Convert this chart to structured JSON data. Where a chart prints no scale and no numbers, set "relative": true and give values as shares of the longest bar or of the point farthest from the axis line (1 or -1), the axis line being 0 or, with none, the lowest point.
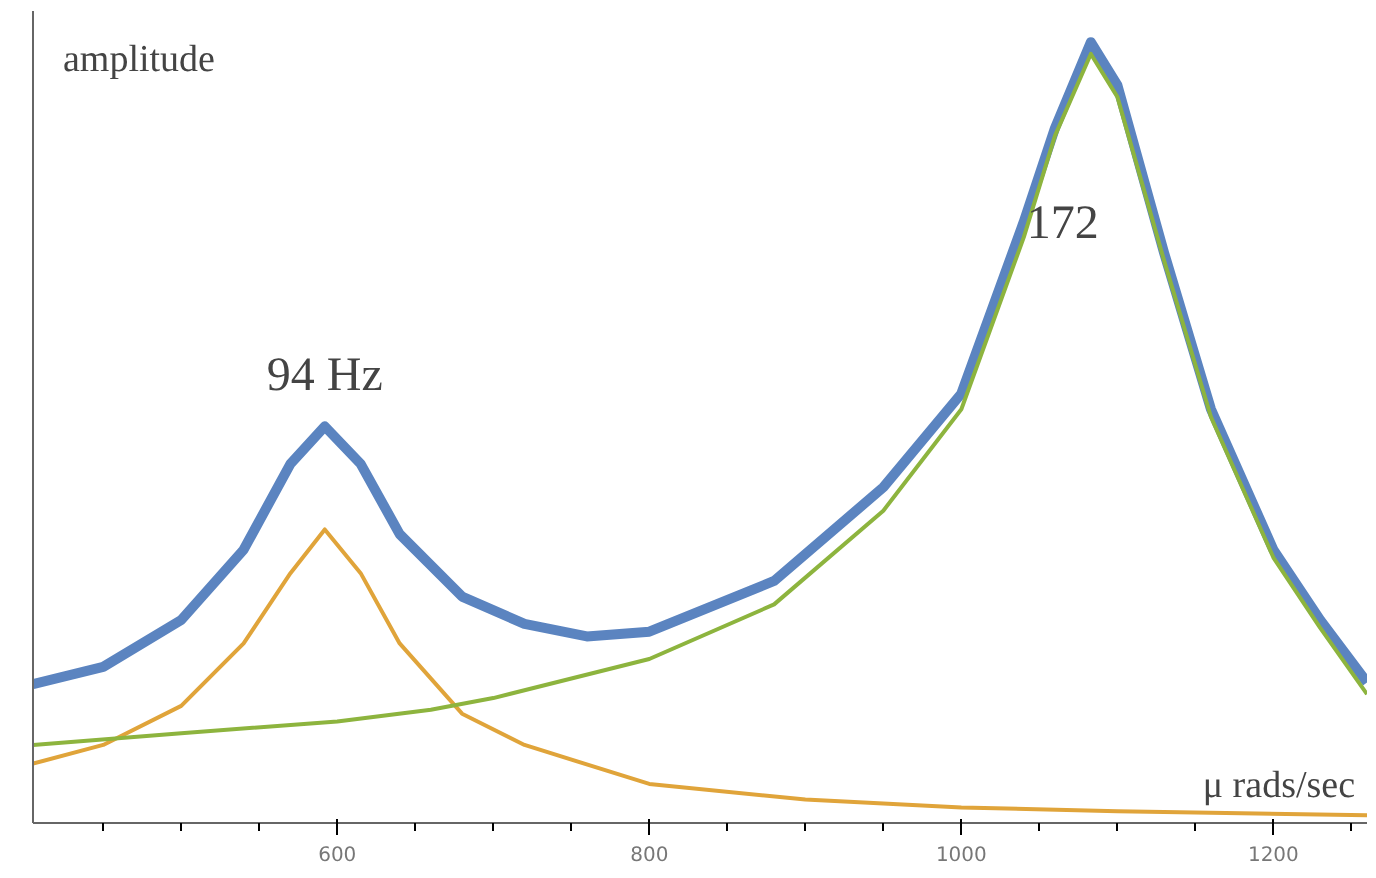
{
  "chart_data": {
    "type": "line",
    "relative": true,
    "xlabel": "μ rads/sec",
    "ylabel": "amplitude",
    "xlim": [
      405,
      1260
    ],
    "xticks": [
      600,
      800,
      1000,
      1200
    ],
    "grid": false,
    "marker": "none",
    "line_style": "solid",
    "annotations": [
      {
        "text": "94 Hz",
        "x": 592,
        "y": 0.508
      },
      "172"
    ],
    "series": [
      {
        "color": "#5b84c0",
        "x": [
          405,
          450,
          500,
          540,
          570,
          592,
          615,
          640,
          680,
          720,
          760,
          800,
          880,
          950,
          1000,
          1040,
          1060,
          1083,
          1100,
          1130,
          1160,
          1200,
          1230,
          1260
        ],
        "values": [
          0.178,
          0.2,
          0.26,
          0.35,
          0.46,
          0.508,
          0.46,
          0.37,
          0.29,
          0.255,
          0.239,
          0.245,
          0.31,
          0.43,
          0.55,
          0.77,
          0.89,
          1.0,
          0.945,
          0.73,
          0.53,
          0.35,
          0.26,
          0.18
        ]
      },
      {
        "color": "#e0a43a",
        "x": [
          405,
          450,
          500,
          540,
          570,
          592,
          615,
          640,
          680,
          720,
          800,
          900,
          1000,
          1100,
          1260
        ],
        "values": [
          0.076,
          0.1,
          0.15,
          0.23,
          0.32,
          0.376,
          0.32,
          0.23,
          0.14,
          0.1,
          0.05,
          0.03,
          0.02,
          0.015,
          0.01
        ]
      },
      {
        "color": "#8db43e",
        "x": [
          405,
          500,
          600,
          660,
          700,
          800,
          880,
          950,
          1000,
          1040,
          1060,
          1083,
          1100,
          1130,
          1160,
          1200,
          1230,
          1260
        ],
        "values": [
          0.1,
          0.115,
          0.13,
          0.145,
          0.16,
          0.21,
          0.28,
          0.4,
          0.53,
          0.75,
          0.88,
          0.985,
          0.93,
          0.72,
          0.52,
          0.34,
          0.25,
          0.165
        ]
      }
    ]
  }
}
